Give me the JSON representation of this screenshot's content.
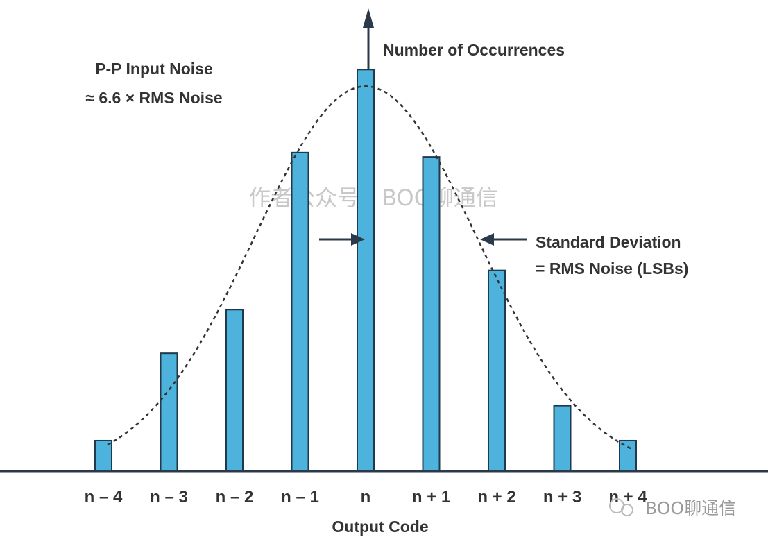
{
  "chart_data": {
    "type": "bar",
    "categories": [
      "n – 4",
      "n – 3",
      "n – 2",
      "n – 1",
      "n",
      "n + 1",
      "n + 2",
      "n + 3",
      "n + 4"
    ],
    "values": [
      7,
      27,
      37,
      73,
      92,
      72,
      46,
      15,
      7
    ],
    "ylim": [
      0,
      100
    ],
    "xlabel": "Output Code",
    "ylabel": "Number of Occurrences",
    "grid": false,
    "bar_color": "#4db3dc",
    "bar_stroke": "#1f3a4d",
    "curve": "gaussian fit, dashed",
    "annotations": {
      "pp_line1": "P-P Input Noise",
      "pp_line2": "≈ 6.6 × RMS Noise",
      "sd_line1": "Standard Deviation",
      "sd_line2": "= RMS Noise (LSBs)"
    },
    "watermark_center": "作者公众号：BOO聊通信",
    "watermark_corner": "BOO聊通信"
  }
}
